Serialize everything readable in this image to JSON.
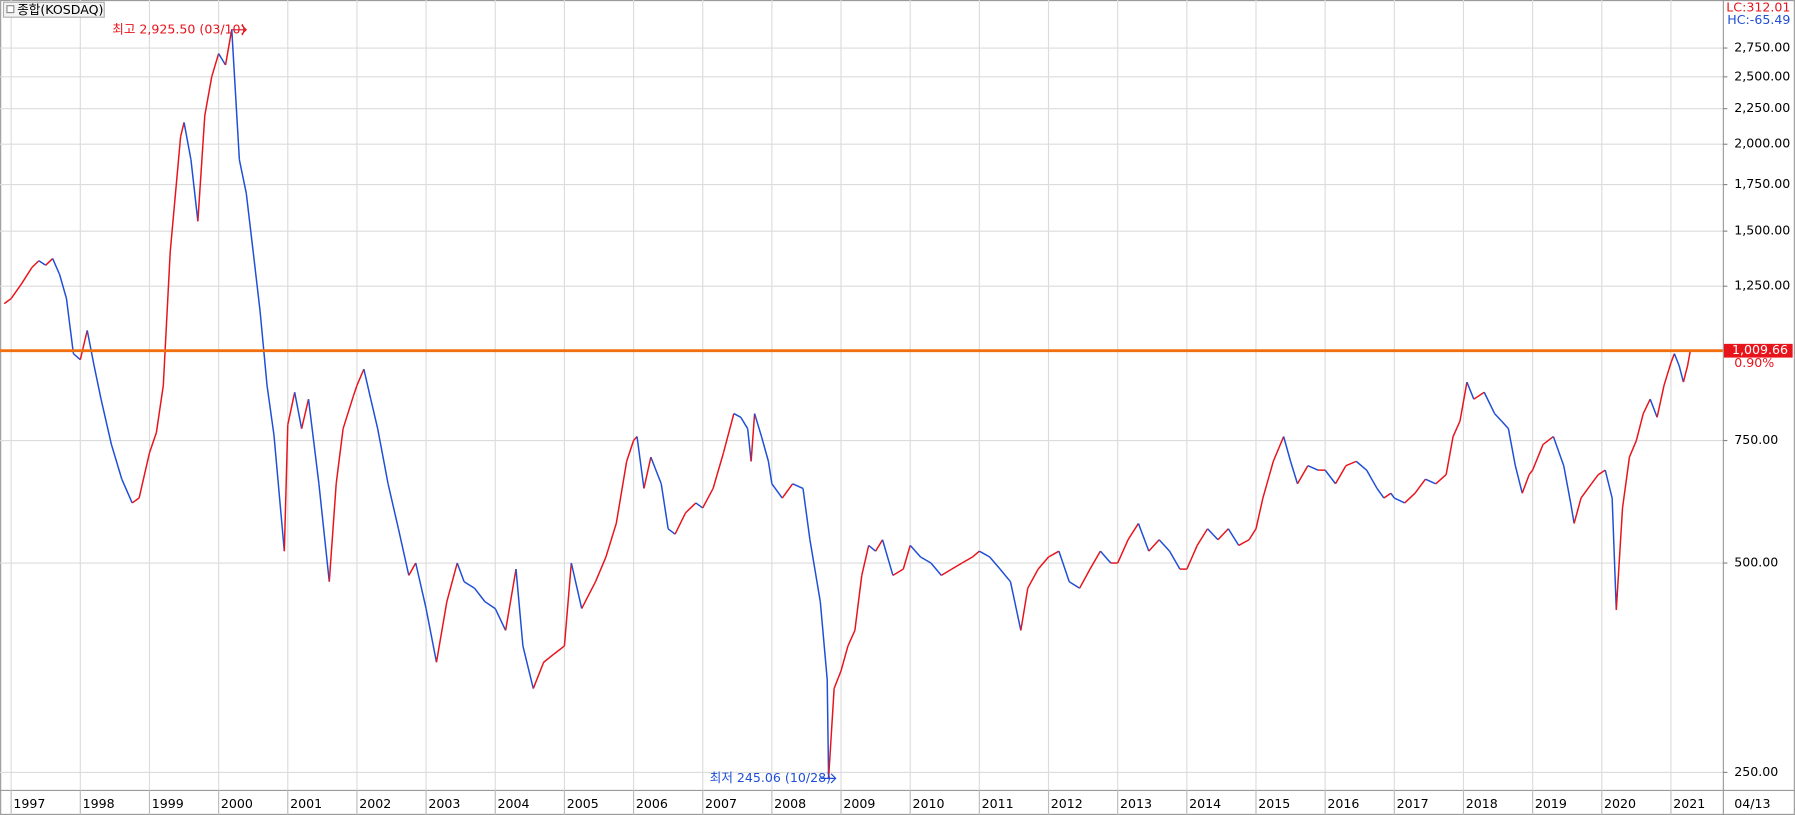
{
  "chart_data": {
    "type": "line",
    "title": "종합(KOSDAQ)",
    "lc_label": "LC:312.01",
    "hc_label": "HC:-65.49",
    "log_scale": true,
    "grid": true,
    "up_color": "#e8141b",
    "down_color": "#1f4fd6",
    "high_annotation": "최고 2,925.50 (03/10)",
    "low_annotation": "최저 245.06 (10/28)",
    "last_date_label": "04/13",
    "price_line": {
      "value": 1009.66,
      "label": "1,009.66",
      "change": "0.90%",
      "color": "#f07010"
    },
    "xlim": [
      1996.84,
      2021.75
    ],
    "ylim": [
      236,
      3224
    ],
    "xticks": [
      1997,
      1998,
      1999,
      2000,
      2001,
      2002,
      2003,
      2004,
      2005,
      2006,
      2007,
      2008,
      2009,
      2010,
      2011,
      2012,
      2013,
      2014,
      2015,
      2016,
      2017,
      2018,
      2019,
      2020,
      2021
    ],
    "yticks": [
      {
        "value": 250,
        "label": "250.00"
      },
      {
        "value": 500,
        "label": "500.00"
      },
      {
        "value": 750,
        "label": "750.00"
      },
      {
        "value": 1250,
        "label": "1,250.00"
      },
      {
        "value": 1500,
        "label": "1,500.00"
      },
      {
        "value": 1750,
        "label": "1,750.00"
      },
      {
        "value": 2000,
        "label": "2,000.00"
      },
      {
        "value": 2250,
        "label": "2,250.00"
      },
      {
        "value": 2500,
        "label": "2,500.00"
      },
      {
        "value": 2750,
        "label": "2,750.00"
      }
    ],
    "x": [
      1996.9,
      1997.0,
      1997.15,
      1997.3,
      1997.4,
      1997.5,
      1997.6,
      1997.7,
      1997.8,
      1997.9,
      1998.0,
      1998.1,
      1998.2,
      1998.3,
      1998.45,
      1998.6,
      1998.75,
      1998.85,
      1999.0,
      1999.1,
      1999.2,
      1999.3,
      1999.45,
      1999.5,
      1999.6,
      1999.7,
      1999.8,
      1999.9,
      2000.0,
      2000.1,
      2000.19,
      2000.3,
      2000.4,
      2000.5,
      2000.6,
      2000.7,
      2000.8,
      2000.95,
      2001.0,
      2001.1,
      2001.2,
      2001.3,
      2001.45,
      2001.6,
      2001.7,
      2001.8,
      2001.95,
      2002.0,
      2002.1,
      2002.2,
      2002.3,
      2002.45,
      2002.6,
      2002.75,
      2002.85,
      2003.0,
      2003.15,
      2003.3,
      2003.45,
      2003.55,
      2003.7,
      2003.85,
      2004.0,
      2004.15,
      2004.3,
      2004.4,
      2004.55,
      2004.7,
      2004.85,
      2005.0,
      2005.1,
      2005.25,
      2005.45,
      2005.6,
      2005.75,
      2005.9,
      2006.0,
      2006.05,
      2006.15,
      2006.25,
      2006.4,
      2006.5,
      2006.6,
      2006.75,
      2006.9,
      2007.0,
      2007.15,
      2007.3,
      2007.45,
      2007.55,
      2007.65,
      2007.7,
      2007.75,
      2007.85,
      2007.95,
      2008.0,
      2008.15,
      2008.3,
      2008.45,
      2008.55,
      2008.7,
      2008.8,
      2008.82,
      2008.9,
      2009.0,
      2009.1,
      2009.2,
      2009.3,
      2009.4,
      2009.5,
      2009.6,
      2009.75,
      2009.9,
      2010.0,
      2010.15,
      2010.3,
      2010.45,
      2010.6,
      2010.75,
      2010.9,
      2011.0,
      2011.15,
      2011.3,
      2011.45,
      2011.6,
      2011.7,
      2011.85,
      2012.0,
      2012.15,
      2012.3,
      2012.45,
      2012.6,
      2012.75,
      2012.9,
      2013.0,
      2013.15,
      2013.3,
      2013.45,
      2013.6,
      2013.75,
      2013.9,
      2014.0,
      2014.15,
      2014.3,
      2014.45,
      2014.6,
      2014.75,
      2014.9,
      2015.0,
      2015.1,
      2015.25,
      2015.4,
      2015.5,
      2015.6,
      2015.75,
      2015.9,
      2016.0,
      2016.15,
      2016.3,
      2016.45,
      2016.6,
      2016.75,
      2016.85,
      2016.95,
      2017.0,
      2017.15,
      2017.3,
      2017.45,
      2017.6,
      2017.75,
      2017.85,
      2017.95,
      2018.05,
      2018.15,
      2018.3,
      2018.45,
      2018.55,
      2018.65,
      2018.75,
      2018.85,
      2018.95,
      2019.0,
      2019.15,
      2019.3,
      2019.45,
      2019.55,
      2019.6,
      2019.7,
      2019.85,
      2019.95,
      2020.05,
      2020.15,
      2020.21,
      2020.3,
      2020.4,
      2020.5,
      2020.6,
      2020.7,
      2020.8,
      2020.9,
      2021.0,
      2021.05,
      2021.12,
      2021.18,
      2021.24,
      2021.28
    ],
    "values": [
      1180,
      1200,
      1260,
      1330,
      1360,
      1340,
      1370,
      1300,
      1200,
      1000,
      980,
      1080,
      960,
      860,
      740,
      660,
      610,
      620,
      720,
      770,
      900,
      1400,
      2050,
      2150,
      1900,
      1550,
      2200,
      2500,
      2700,
      2600,
      2925.5,
      1900,
      1700,
      1400,
      1150,
      900,
      764,
      520,
      790,
      880,
      780,
      860,
      650,
      470,
      650,
      780,
      870,
      900,
      950,
      860,
      780,
      650,
      560,
      480,
      500,
      430,
      360,
      440,
      500,
      470,
      460,
      440,
      430,
      400,
      490,
      380,
      330,
      360,
      370,
      380,
      500,
      430,
      470,
      510,
      570,
      700,
      750,
      760,
      640,
      710,
      650,
      560,
      550,
      590,
      610,
      600,
      640,
      720,
      820,
      810,
      780,
      700,
      820,
      760,
      700,
      650,
      620,
      650,
      640,
      540,
      440,
      340,
      245.06,
      330,
      350,
      380,
      400,
      480,
      530,
      520,
      540,
      480,
      490,
      530,
      510,
      500,
      480,
      490,
      500,
      510,
      520,
      510,
      490,
      470,
      400,
      460,
      490,
      510,
      520,
      470,
      460,
      490,
      520,
      500,
      500,
      540,
      570,
      520,
      540,
      520,
      490,
      490,
      530,
      560,
      540,
      560,
      530,
      540,
      560,
      620,
      700,
      760,
      700,
      650,
      690,
      680,
      680,
      650,
      690,
      700,
      680,
      640,
      620,
      630,
      620,
      610,
      630,
      660,
      650,
      670,
      760,
      800,
      910,
      860,
      880,
      820,
      800,
      780,
      690,
      630,
      670,
      680,
      740,
      760,
      690,
      610,
      570,
      620,
      650,
      670,
      680,
      620,
      428,
      600,
      710,
      750,
      820,
      860,
      810,
      900,
      970,
      1000,
      960,
      910,
      960,
      1009.66
    ]
  }
}
